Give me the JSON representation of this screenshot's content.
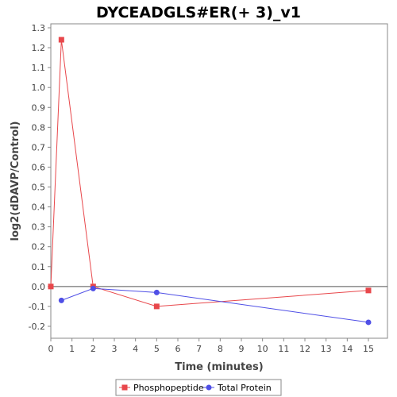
{
  "chart_data": {
    "type": "line",
    "title": "DYCEADGLS#ER(+ 3)_v1",
    "xlabel": "Time (minutes)",
    "ylabel": "log2(dDAVP/Control)",
    "xlim": [
      0,
      15.9
    ],
    "ylim": [
      -0.26,
      1.32
    ],
    "xticks": [
      0,
      1,
      2,
      3,
      4,
      5,
      6,
      7,
      8,
      9,
      10,
      11,
      12,
      13,
      14,
      15
    ],
    "yticks": [
      -0.2,
      -0.1,
      0.0,
      0.1,
      0.2,
      0.3,
      0.4,
      0.5,
      0.6,
      0.7,
      0.8,
      0.9,
      1.0,
      1.1,
      1.2,
      1.3
    ],
    "ytick_labels": [
      "-0.2",
      "-0.1",
      "0.0",
      "0.1",
      "0.2",
      "0.3",
      "0.4",
      "0.5",
      "0.6",
      "0.7",
      "0.8",
      "0.9",
      "1.0",
      "1.1",
      "1.2",
      "1.3"
    ],
    "zero_line": true,
    "grid": false,
    "legend_position": "bottom",
    "series": [
      {
        "name": "Phosphopeptide",
        "marker": "square",
        "color": "#e8474b",
        "x": [
          0,
          0.5,
          2,
          5,
          15
        ],
        "y": [
          0.0,
          1.24,
          0.0,
          -0.1,
          -0.02
        ]
      },
      {
        "name": "Total Protein",
        "marker": "circle",
        "color": "#4f4fe6",
        "x": [
          0.5,
          2,
          5,
          15
        ],
        "y": [
          -0.07,
          -0.01,
          -0.03,
          -0.18
        ]
      }
    ]
  }
}
